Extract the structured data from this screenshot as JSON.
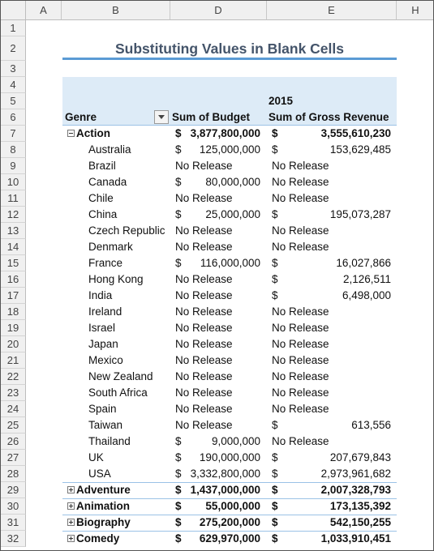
{
  "columns": [
    "A",
    "B",
    "D",
    "E",
    "H"
  ],
  "row_numbers": [
    1,
    2,
    3,
    4,
    5,
    6,
    7,
    8,
    9,
    10,
    11,
    12,
    13,
    14,
    15,
    16,
    17,
    18,
    19,
    20,
    21,
    22,
    23,
    24,
    25,
    26,
    27,
    28,
    29,
    30,
    31,
    32
  ],
  "title": "Substituting Values in Blank Cells",
  "pivot": {
    "year": "2015",
    "headers": [
      "Genre",
      "Sum of Budget",
      "Sum of Gross Revenue"
    ],
    "rows": [
      {
        "label": "Action",
        "toggle": "minus",
        "budget": [
          "$",
          "3,877,800,000"
        ],
        "gross": [
          "$",
          "3,555,610,230"
        ]
      },
      {
        "label": "Australia",
        "budget": [
          "$",
          "125,000,000"
        ],
        "gross": [
          "$",
          "153,629,485"
        ]
      },
      {
        "label": "Brazil",
        "budget": "No Release",
        "gross": "No Release"
      },
      {
        "label": "Canada",
        "budget": [
          "$",
          "80,000,000"
        ],
        "gross": "No Release"
      },
      {
        "label": "Chile",
        "budget": "No Release",
        "gross": "No Release"
      },
      {
        "label": "China",
        "budget": [
          "$",
          "25,000,000"
        ],
        "gross": [
          "$",
          "195,073,287"
        ]
      },
      {
        "label": "Czech Republic",
        "budget": "No Release",
        "gross": "No Release"
      },
      {
        "label": "Denmark",
        "budget": "No Release",
        "gross": "No Release"
      },
      {
        "label": "France",
        "budget": [
          "$",
          "116,000,000"
        ],
        "gross": [
          "$",
          "16,027,866"
        ]
      },
      {
        "label": "Hong Kong",
        "budget": "No Release",
        "gross": [
          "$",
          "2,126,511"
        ]
      },
      {
        "label": "India",
        "budget": "No Release",
        "gross": [
          "$",
          "6,498,000"
        ]
      },
      {
        "label": "Ireland",
        "budget": "No Release",
        "gross": "No Release"
      },
      {
        "label": "Israel",
        "budget": "No Release",
        "gross": "No Release"
      },
      {
        "label": "Japan",
        "budget": "No Release",
        "gross": "No Release"
      },
      {
        "label": "Mexico",
        "budget": "No Release",
        "gross": "No Release"
      },
      {
        "label": "New Zealand",
        "budget": "No Release",
        "gross": "No Release"
      },
      {
        "label": "South Africa",
        "budget": "No Release",
        "gross": "No Release"
      },
      {
        "label": "Spain",
        "budget": "No Release",
        "gross": "No Release"
      },
      {
        "label": "Taiwan",
        "budget": "No Release",
        "gross": [
          "$",
          "613,556"
        ]
      },
      {
        "label": "Thailand",
        "budget": [
          "$",
          "9,000,000"
        ],
        "gross": "No Release"
      },
      {
        "label": "UK",
        "budget": [
          "$",
          "190,000,000"
        ],
        "gross": [
          "$",
          "207,679,843"
        ]
      },
      {
        "label": "USA",
        "budget": [
          "$",
          "3,332,800,000"
        ],
        "gross": [
          "$",
          "2,973,961,682"
        ]
      },
      {
        "label": "Adventure",
        "toggle": "plus",
        "budget": [
          "$",
          "1,437,000,000"
        ],
        "gross": [
          "$",
          "2,007,328,793"
        ]
      },
      {
        "label": "Animation",
        "toggle": "plus",
        "budget": [
          "$",
          "55,000,000"
        ],
        "gross": [
          "$",
          "173,135,392"
        ]
      },
      {
        "label": "Biography",
        "toggle": "plus",
        "budget": [
          "$",
          "275,200,000"
        ],
        "gross": [
          "$",
          "542,150,255"
        ]
      },
      {
        "label": "Comedy",
        "toggle": "plus",
        "budget": [
          "$",
          "629,970,000"
        ],
        "gross": [
          "$",
          "1,033,910,451"
        ]
      }
    ]
  }
}
